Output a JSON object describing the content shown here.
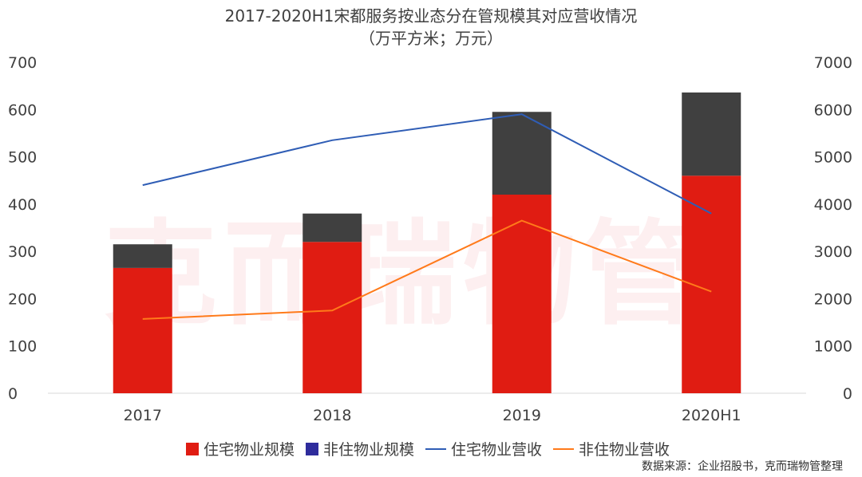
{
  "chart_data": {
    "type": "bar",
    "title": "2017-2020H1宋都服务按业态分在管规模其对应营收情况",
    "subtitle": "（万平方米；万元）",
    "categories": [
      "2017",
      "2018",
      "2019",
      "2020H1"
    ],
    "y_left": {
      "ylim": [
        0,
        700
      ],
      "ticks": [
        0,
        100,
        200,
        300,
        400,
        500,
        600,
        700
      ]
    },
    "y_right": {
      "ylim": [
        0,
        7000
      ],
      "ticks": [
        0,
        1000,
        2000,
        3000,
        4000,
        5000,
        6000,
        7000
      ]
    },
    "series": [
      {
        "name": "住宅物业规模",
        "kind": "bar",
        "axis": "left",
        "color": "#e01c12",
        "values": [
          265,
          320,
          420,
          460
        ]
      },
      {
        "name": "非住物业规模",
        "kind": "bar",
        "axis": "left",
        "color": "#404040",
        "legend_color": "#2e2c9c",
        "values": [
          50,
          60,
          175,
          176
        ]
      },
      {
        "name": "住宅物业营收",
        "kind": "line",
        "axis": "right",
        "color": "#2f5db5",
        "values": [
          4400,
          5350,
          5900,
          3800
        ]
      },
      {
        "name": "非住物业营收",
        "kind": "line",
        "axis": "right",
        "color": "#ff7a1a",
        "values": [
          1570,
          1750,
          3650,
          2150
        ]
      }
    ],
    "stacked": true,
    "grid": false,
    "legend_position": "bottom"
  },
  "source": "数据来源：企业招股书，克而瑞物管整理",
  "watermark": "克而瑞物管"
}
